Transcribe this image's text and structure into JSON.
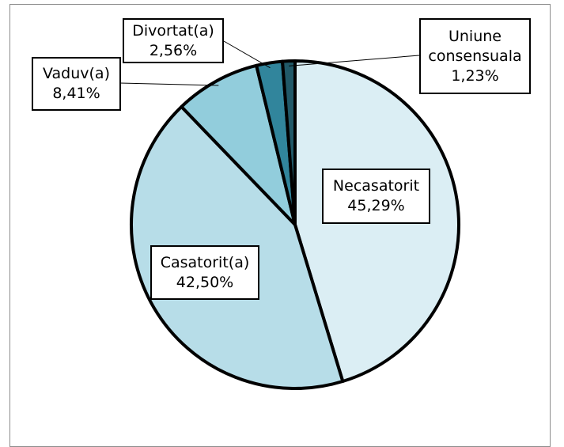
{
  "chart_data": {
    "type": "pie",
    "categories": [
      "Necasatorit",
      "Casatorit(a)",
      "Vaduv(a)",
      "Divortat(a)",
      "Uniune consensuala"
    ],
    "values": [
      45.29,
      42.5,
      8.41,
      2.56,
      1.23
    ],
    "value_labels": [
      "45,29%",
      "42,50%",
      "8,41%",
      "2,56%",
      "1,23%"
    ],
    "colors": [
      "#dbeef4",
      "#b7dde8",
      "#92cddc",
      "#31859c",
      "#215968"
    ]
  }
}
